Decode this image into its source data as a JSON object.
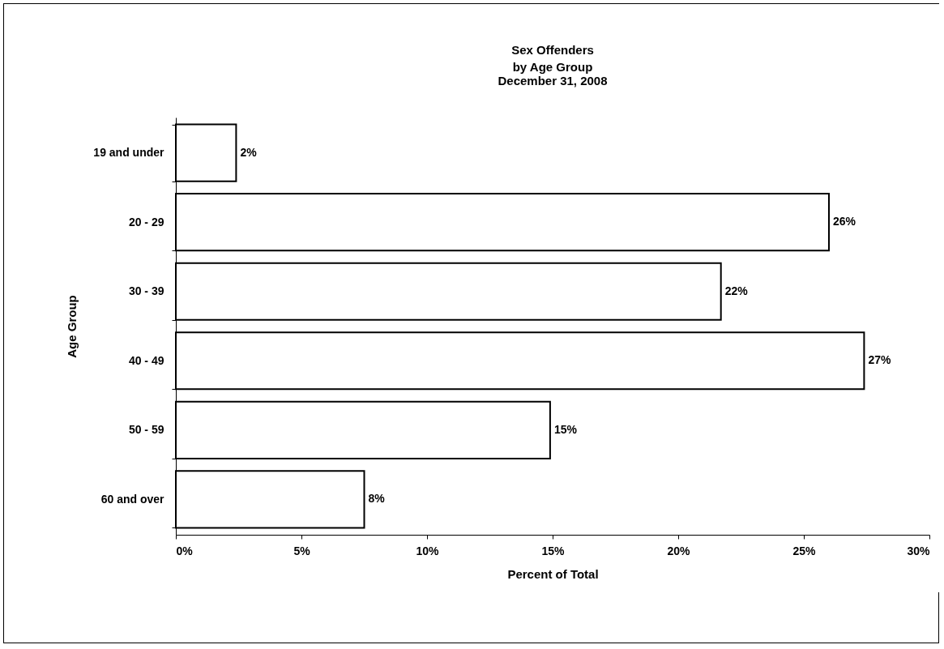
{
  "chart_data": {
    "type": "bar",
    "orientation": "horizontal",
    "title": "Sex Offenders\nby Age Group",
    "subtitle": "December 31, 2008",
    "xlabel": "Percent of Total",
    "ylabel": "Age Group",
    "categories": [
      "19 and under",
      "20 - 29",
      "30 - 39",
      "40 - 49",
      "50 - 59",
      "60 and over"
    ],
    "values": [
      2.4,
      26.0,
      21.7,
      27.4,
      14.9,
      7.5
    ],
    "value_labels": [
      "2%",
      "26%",
      "22%",
      "27%",
      "15%",
      "8%"
    ],
    "color": "#ffffff",
    "xlim": [
      0,
      30
    ],
    "xticks": [
      {
        "value": 0,
        "label": "0%"
      },
      {
        "value": 5,
        "label": "5%"
      },
      {
        "value": 10,
        "label": "10%"
      },
      {
        "value": 15,
        "label": "15%"
      },
      {
        "value": 20,
        "label": "20%"
      },
      {
        "value": 25,
        "label": "25%"
      },
      {
        "value": 30,
        "label": "30%"
      }
    ],
    "grid": false
  }
}
